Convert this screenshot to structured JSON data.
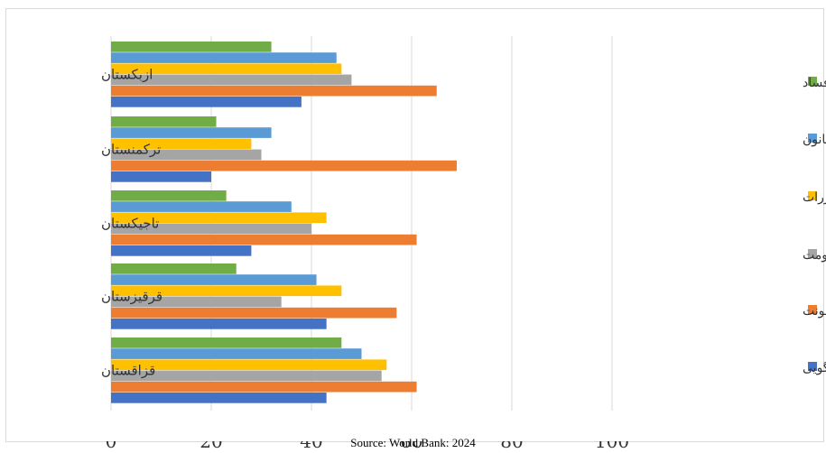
{
  "chart_data": {
    "type": "bar",
    "orientation": "horizontal",
    "categories": [
      "ازبکستان",
      "ترکمنستان",
      "تاجیکستان",
      "قرقیزستان",
      "قزاقستان"
    ],
    "x_ticks": [
      "0",
      "20",
      "40",
      "60",
      "80",
      "100"
    ],
    "xlim": [
      0,
      100
    ],
    "grid": true,
    "legend_position": "right",
    "series": [
      {
        "name": "کنترل فساد",
        "color": "#70AD47",
        "values": [
          32,
          21,
          23,
          25,
          46
        ]
      },
      {
        "name": "حاکمیت قانون",
        "color": "#5B9BD5",
        "values": [
          45,
          32,
          36,
          41,
          50
        ]
      },
      {
        "name": "کیفیت مقررات",
        "color": "#FFC000",
        "values": [
          46,
          28,
          43,
          46,
          55
        ]
      },
      {
        "name": "اثربخشی حکومت",
        "color": "#A5A5A5",
        "values": [
          48,
          30,
          40,
          34,
          54
        ]
      },
      {
        "name": "ثبات سیاسی و نبود خشونت",
        "color": "#ED7D31",
        "values": [
          65,
          69,
          61,
          57,
          61
        ]
      },
      {
        "name": "اظهارنظر و پاسخگویی",
        "color": "#4472C4",
        "values": [
          38,
          20,
          28,
          43,
          43
        ]
      }
    ]
  },
  "source": "Source: World Bank: 2024"
}
